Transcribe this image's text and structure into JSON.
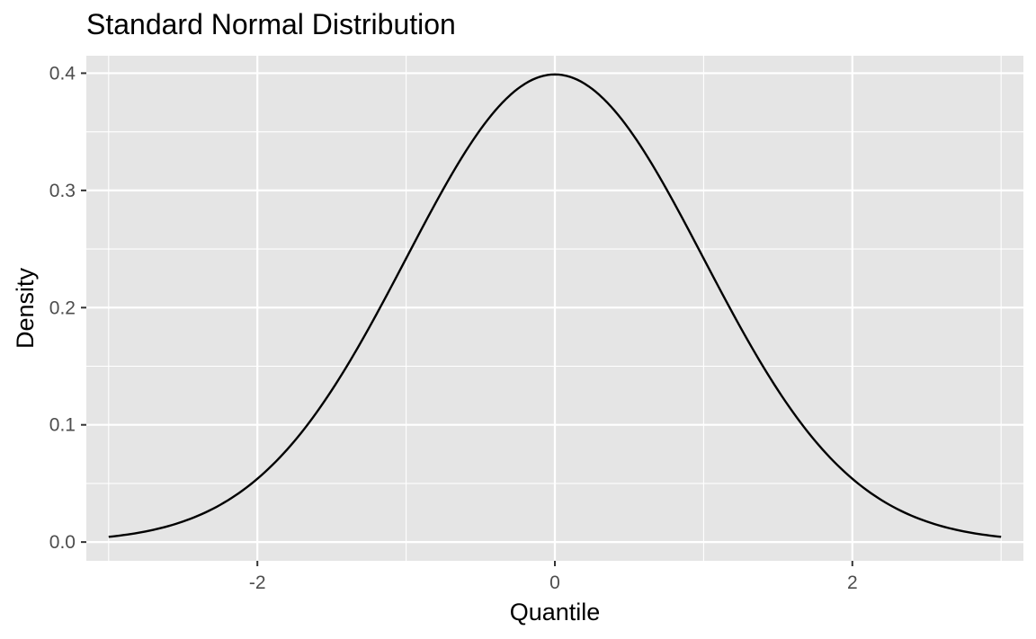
{
  "chart_data": {
    "type": "line",
    "title": "Standard Normal Distribution",
    "xlabel": "Quantile",
    "ylabel": "Density",
    "xlim": [
      -3.15,
      3.15
    ],
    "ylim": [
      -0.016,
      0.4149
    ],
    "x_ticks": [
      -2,
      0,
      2
    ],
    "x_tick_labels": [
      "-2",
      "0",
      "2"
    ],
    "y_ticks": [
      0.0,
      0.1,
      0.2,
      0.3,
      0.4
    ],
    "y_tick_labels": [
      "0.0",
      "0.1",
      "0.2",
      "0.3",
      "0.4"
    ],
    "grid": true,
    "legend": "none",
    "colors": {
      "panel_background": "#e5e5e5",
      "grid": "#ffffff",
      "line": "#000000",
      "tick_label": "#4d4d4d",
      "tick_mark": "#333333"
    },
    "series": [
      {
        "x": [
          -3.0,
          -2.75,
          -2.5,
          -2.25,
          -2.0,
          -1.75,
          -1.5,
          -1.25,
          -1.0,
          -0.75,
          -0.5,
          -0.25,
          0.0,
          0.25,
          0.5,
          0.75,
          1.0,
          1.25,
          1.5,
          1.75,
          2.0,
          2.25,
          2.5,
          2.75,
          3.0
        ],
        "values": [
          0.0044,
          0.0091,
          0.0175,
          0.0317,
          0.054,
          0.0863,
          0.1295,
          0.1826,
          0.242,
          0.3011,
          0.3521,
          0.3867,
          0.3989,
          0.3867,
          0.3521,
          0.3011,
          0.242,
          0.1826,
          0.1295,
          0.0863,
          0.054,
          0.0317,
          0.0175,
          0.0091,
          0.0044
        ]
      }
    ]
  }
}
